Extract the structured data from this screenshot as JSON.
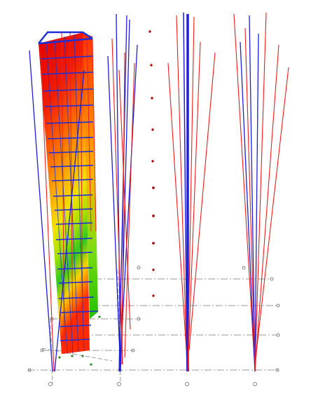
{
  "viewport": {
    "background": "#ffffff",
    "colors": {
      "column_blue": "#1f1fd6",
      "deformed_red": "#ee1c1c",
      "grid_dash": "#9a9a9a",
      "node_marker": "#aa1010",
      "frame_blue": "#2233cc",
      "support_marker": "#808080"
    },
    "contour_gradient": [
      "#e60000",
      "#ff2a00",
      "#ff5a00",
      "#ff9000",
      "#ffc000",
      "#f0e000",
      "#9fe000",
      "#33cc20",
      "#00b050"
    ],
    "grid_labels": [
      "",
      "",
      "",
      "",
      "",
      "",
      "",
      ""
    ],
    "icon": "structural-analysis-contour"
  }
}
